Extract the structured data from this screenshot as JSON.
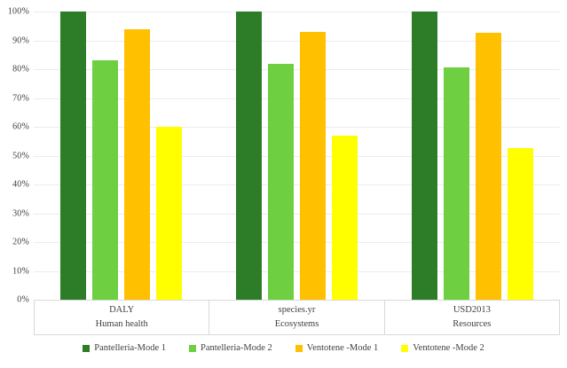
{
  "chart_data": {
    "type": "bar",
    "title": "",
    "xlabel": "",
    "ylabel": "",
    "ylim": [
      0,
      100
    ],
    "ytick_step": 10,
    "yticks": [
      "0%",
      "10%",
      "20%",
      "30%",
      "40%",
      "50%",
      "60%",
      "70%",
      "80%",
      "90%",
      "100%"
    ],
    "grid": true,
    "legend_position": "bottom",
    "categories": [
      {
        "metric": "DALY",
        "group": "Human health"
      },
      {
        "metric": "species.yr",
        "group": "Ecosystems"
      },
      {
        "metric": "USD2013",
        "group": "Resources"
      }
    ],
    "series": [
      {
        "name": "Pantelleria-Mode 1",
        "color": "#2D7D28",
        "values": [
          100,
          100,
          100
        ]
      },
      {
        "name": "Pantelleria-Mode 2",
        "color": "#6ECF41",
        "values": [
          83,
          82,
          80.5
        ]
      },
      {
        "name": "Ventotene -Mode 1",
        "color": "#FFC000",
        "values": [
          94,
          93,
          92.5
        ]
      },
      {
        "name": "Ventotene -Mode 2",
        "color": "#FFFF00",
        "values": [
          60,
          57,
          52.5
        ]
      }
    ]
  },
  "colors": {
    "gridline": "#ECECEC",
    "axis_border": "#D9D9D9",
    "tick_text": "#404040",
    "category_text": "#404040",
    "legend_text": "#404040",
    "background": "#FFFFFF"
  }
}
